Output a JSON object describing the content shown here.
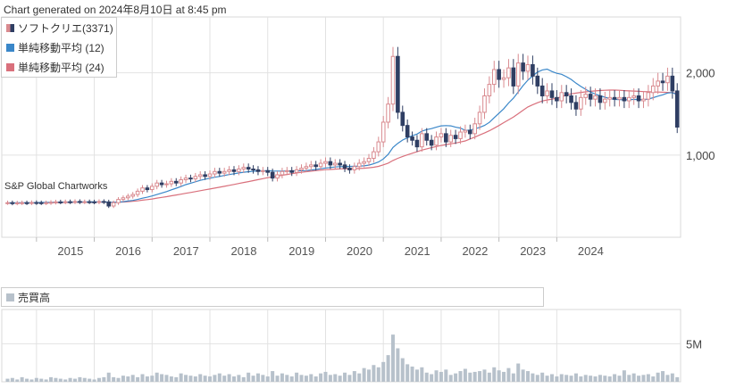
{
  "header": {
    "generated": "Chart generated on 2024年8月10日 at 8:45 pm"
  },
  "legend": {
    "items": [
      {
        "label": "ソフトクリエ(3371)",
        "color": "#d98a8f",
        "color2": "#2f3e63"
      },
      {
        "label": "単純移動平均 (12)",
        "color": "#3a87c9"
      },
      {
        "label": "単純移動平均 (24)",
        "color": "#d9707c"
      }
    ]
  },
  "watermark": "S&P Global Chartworks",
  "volume_legend": {
    "label": "売買高",
    "color": "#b7c1cb"
  },
  "colors": {
    "up": "#d98a8f",
    "down": "#2f3e63",
    "ma12": "#3a87c9",
    "ma24": "#d9707c",
    "volume": "#b7c1cb",
    "grid": "#e2e2e2"
  },
  "chart_data": [
    {
      "type": "candlestick",
      "title": "",
      "x_ticks": [
        "2015",
        "2016",
        "2017",
        "2018",
        "2019",
        "2020",
        "2021",
        "2022",
        "2023",
        "2024"
      ],
      "y_ticks": [
        {
          "value": 1000,
          "label": "1,000"
        },
        {
          "value": 2000,
          "label": "2,000"
        }
      ],
      "ylim": [
        0,
        2680
      ],
      "start_month": "2014-07",
      "grid": true,
      "closes": [
        420,
        415,
        418,
        420,
        418,
        422,
        420,
        418,
        420,
        425,
        430,
        428,
        432,
        430,
        435,
        430,
        432,
        430,
        428,
        435,
        430,
        380,
        420,
        460,
        480,
        500,
        520,
        560,
        600,
        580,
        620,
        660,
        640,
        650,
        680,
        660,
        700,
        720,
        710,
        740,
        760,
        740,
        770,
        800,
        780,
        800,
        820,
        800,
        830,
        850,
        830,
        820,
        800,
        810,
        790,
        720,
        760,
        800,
        810,
        790,
        820,
        840,
        860,
        880,
        860,
        900,
        920,
        880,
        900,
        880,
        840,
        820,
        860,
        900,
        920,
        960,
        1040,
        1160,
        1400,
        1620,
        2200,
        1520,
        1360,
        1220,
        1180,
        1100,
        1260,
        1180,
        1120,
        1220,
        1260,
        1160,
        1240,
        1200,
        1280,
        1300,
        1260,
        1380,
        1520,
        1720,
        1860,
        2040,
        1920,
        1940,
        2060,
        1840,
        2120,
        2020,
        2100,
        1960,
        1840,
        1720,
        1780,
        1700,
        1660,
        1760,
        1720,
        1640,
        1560,
        1700,
        1740,
        1680,
        1720,
        1640,
        1680,
        1700,
        1680,
        1700,
        1660,
        1700,
        1720,
        1660,
        1680,
        1760,
        1840,
        1900,
        1880,
        1960,
        1780,
        1340
      ],
      "ma12": [
        418,
        418,
        419,
        419,
        420,
        421,
        422,
        423,
        424,
        425,
        426,
        427,
        428,
        428,
        429,
        429,
        430,
        430,
        430,
        431,
        431,
        425,
        425,
        428,
        433,
        440,
        448,
        460,
        475,
        487,
        502,
        520,
        538,
        556,
        577,
        597,
        617,
        640,
        658,
        675,
        692,
        706,
        718,
        730,
        740,
        752,
        763,
        772,
        782,
        791,
        797,
        803,
        806,
        808,
        809,
        806,
        805,
        805,
        806,
        806,
        807,
        809,
        812,
        818,
        825,
        833,
        843,
        849,
        855,
        859,
        861,
        862,
        864,
        865,
        869,
        878,
        894,
        916,
        953,
        1008,
        1093,
        1143,
        1183,
        1211,
        1235,
        1255,
        1291,
        1310,
        1322,
        1339,
        1355,
        1358,
        1355,
        1339,
        1328,
        1300,
        1304,
        1319,
        1337,
        1361,
        1397,
        1455,
        1509,
        1564,
        1633,
        1692,
        1767,
        1844,
        1911,
        1963,
        2009,
        2035,
        2045,
        2016,
        1994,
        1982,
        1953,
        1919,
        1874,
        1835,
        1800,
        1767,
        1741,
        1722,
        1703,
        1686,
        1676,
        1675,
        1672,
        1672,
        1677,
        1674,
        1675,
        1681,
        1698,
        1717,
        1733,
        1755,
        1760,
        1734
      ],
      "ma24": [
        418,
        418,
        418,
        419,
        419,
        419,
        420,
        420,
        421,
        421,
        422,
        422,
        423,
        423,
        424,
        424,
        425,
        425,
        426,
        426,
        427,
        425,
        425,
        426,
        429,
        432,
        437,
        443,
        451,
        458,
        466,
        476,
        485,
        494,
        504,
        514,
        524,
        535,
        545,
        556,
        566,
        577,
        587,
        598,
        609,
        620,
        631,
        642,
        654,
        666,
        677,
        689,
        701,
        713,
        725,
        734,
        744,
        754,
        764,
        774,
        782,
        790,
        797,
        804,
        811,
        816,
        822,
        825,
        829,
        832,
        832,
        833,
        834,
        837,
        840,
        845,
        852,
        863,
        881,
        902,
        934,
        960,
        983,
        1003,
        1022,
        1040,
        1060,
        1075,
        1089,
        1104,
        1117,
        1127,
        1137,
        1146,
        1159,
        1172,
        1196,
        1219,
        1244,
        1268,
        1296,
        1327,
        1359,
        1394,
        1428,
        1462,
        1503,
        1545,
        1585,
        1612,
        1636,
        1658,
        1670,
        1681,
        1692,
        1710,
        1730,
        1745,
        1753,
        1762,
        1769,
        1775,
        1780,
        1785,
        1788,
        1790,
        1790,
        1788,
        1784,
        1780,
        1778,
        1775,
        1772,
        1770,
        1768,
        1766,
        1764,
        1762,
        1760,
        1748
      ]
    },
    {
      "type": "bar",
      "title": "",
      "series_name": "売買高",
      "y_ticks": [
        {
          "value": 5000000,
          "label": "5M"
        }
      ],
      "ylim": [
        0,
        9500000
      ],
      "volumes_m": [
        0.4,
        0.5,
        0.3,
        0.6,
        0.4,
        0.3,
        0.5,
        0.4,
        0.3,
        0.6,
        0.5,
        0.4,
        0.3,
        0.5,
        0.4,
        0.6,
        0.5,
        0.4,
        0.3,
        0.5,
        0.6,
        1.2,
        0.6,
        0.5,
        0.8,
        0.7,
        0.9,
        0.6,
        1.0,
        0.7,
        0.8,
        1.2,
        1.0,
        0.9,
        0.7,
        0.6,
        1.1,
        0.9,
        0.8,
        0.7,
        1.0,
        0.8,
        0.7,
        0.9,
        1.1,
        0.8,
        1.0,
        0.7,
        0.9,
        0.6,
        1.2,
        0.8,
        1.1,
        0.9,
        0.7,
        1.4,
        0.8,
        1.1,
        0.9,
        0.7,
        1.2,
        0.9,
        0.8,
        1.0,
        0.7,
        1.1,
        1.3,
        0.9,
        1.0,
        0.8,
        1.2,
        0.9,
        1.4,
        1.1,
        1.8,
        1.6,
        2.2,
        1.9,
        2.6,
        3.5,
        6.2,
        4.4,
        3.1,
        2.3,
        2.0,
        1.6,
        1.9,
        1.2,
        1.0,
        1.5,
        1.3,
        1.6,
        0.9,
        1.1,
        1.4,
        1.7,
        1.2,
        1.3,
        1.4,
        1.6,
        1.2,
        1.9,
        1.5,
        1.3,
        1.8,
        1.1,
        2.4,
        1.6,
        1.4,
        1.1,
        0.9,
        1.2,
        0.8,
        1.0,
        0.7,
        1.0,
        0.9,
        0.8,
        1.1,
        0.7,
        0.9,
        0.8,
        0.7,
        0.9,
        0.8,
        0.7,
        1.0,
        0.8,
        1.5,
        0.9,
        1.1,
        0.8,
        0.9,
        1.0,
        0.7,
        1.2,
        1.4,
        0.9,
        1.1,
        0.6
      ]
    }
  ]
}
